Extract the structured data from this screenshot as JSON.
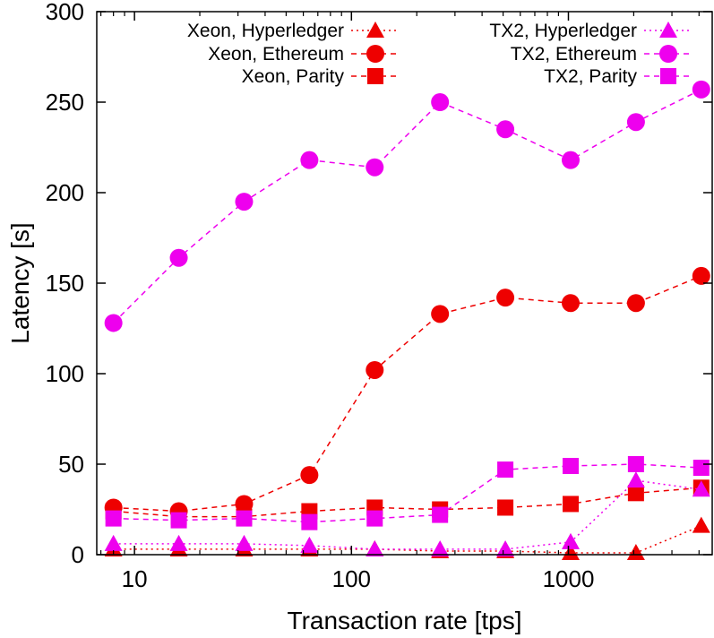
{
  "chart_data": {
    "type": "line",
    "title": "",
    "xlabel": "Transaction rate [tps]",
    "ylabel": "Latency [s]",
    "xscale": "log",
    "xlim": [
      6.7,
      4600
    ],
    "ylim": [
      0,
      300
    ],
    "xticks": [
      10,
      100,
      1000
    ],
    "yticks": [
      0,
      50,
      100,
      150,
      200,
      250,
      300
    ],
    "grid": false,
    "legend_position": "top",
    "series": [
      {
        "name": "Xeon, Hyperledger",
        "marker": "triangle",
        "color": "#ee0000",
        "dash": "dotted",
        "x": [
          8,
          16,
          32,
          64,
          128,
          256,
          512,
          1024,
          2048,
          4096
        ],
        "y": [
          3,
          3,
          3,
          3,
          3,
          2,
          2,
          1,
          1,
          16
        ]
      },
      {
        "name": "Xeon, Ethereum",
        "marker": "circle",
        "color": "#ee0000",
        "dash": "dashed",
        "x": [
          8,
          16,
          32,
          64,
          128,
          256,
          512,
          1024,
          2048,
          4096
        ],
        "y": [
          26,
          24,
          28,
          44,
          102,
          133,
          142,
          139,
          139,
          154
        ]
      },
      {
        "name": "Xeon, Parity",
        "marker": "square",
        "color": "#ee0000",
        "dash": "dashed",
        "x": [
          8,
          16,
          32,
          64,
          128,
          256,
          512,
          1024,
          2048,
          4096
        ],
        "y": [
          24,
          21,
          21,
          24,
          26,
          25,
          26,
          28,
          34,
          37
        ]
      },
      {
        "name": "TX2, Hyperledger",
        "marker": "triangle",
        "color": "#ee00ee",
        "dash": "dotted",
        "x": [
          8,
          16,
          32,
          64,
          128,
          256,
          512,
          1024,
          2048,
          4096
        ],
        "y": [
          6,
          6,
          6,
          5,
          3,
          3,
          3,
          7,
          41,
          36
        ]
      },
      {
        "name": "TX2, Ethereum",
        "marker": "circle",
        "color": "#ee00ee",
        "dash": "dashed",
        "x": [
          8,
          16,
          32,
          64,
          128,
          256,
          512,
          1024,
          2048,
          4096
        ],
        "y": [
          128,
          164,
          195,
          218,
          214,
          250,
          235,
          218,
          239,
          257
        ]
      },
      {
        "name": "TX2, Parity",
        "marker": "square",
        "color": "#ee00ee",
        "dash": "dashed",
        "x": [
          8,
          16,
          32,
          64,
          128,
          256,
          512,
          1024,
          2048,
          4096
        ],
        "y": [
          20,
          19,
          20,
          18,
          20,
          22,
          47,
          49,
          50,
          48
        ]
      }
    ]
  }
}
